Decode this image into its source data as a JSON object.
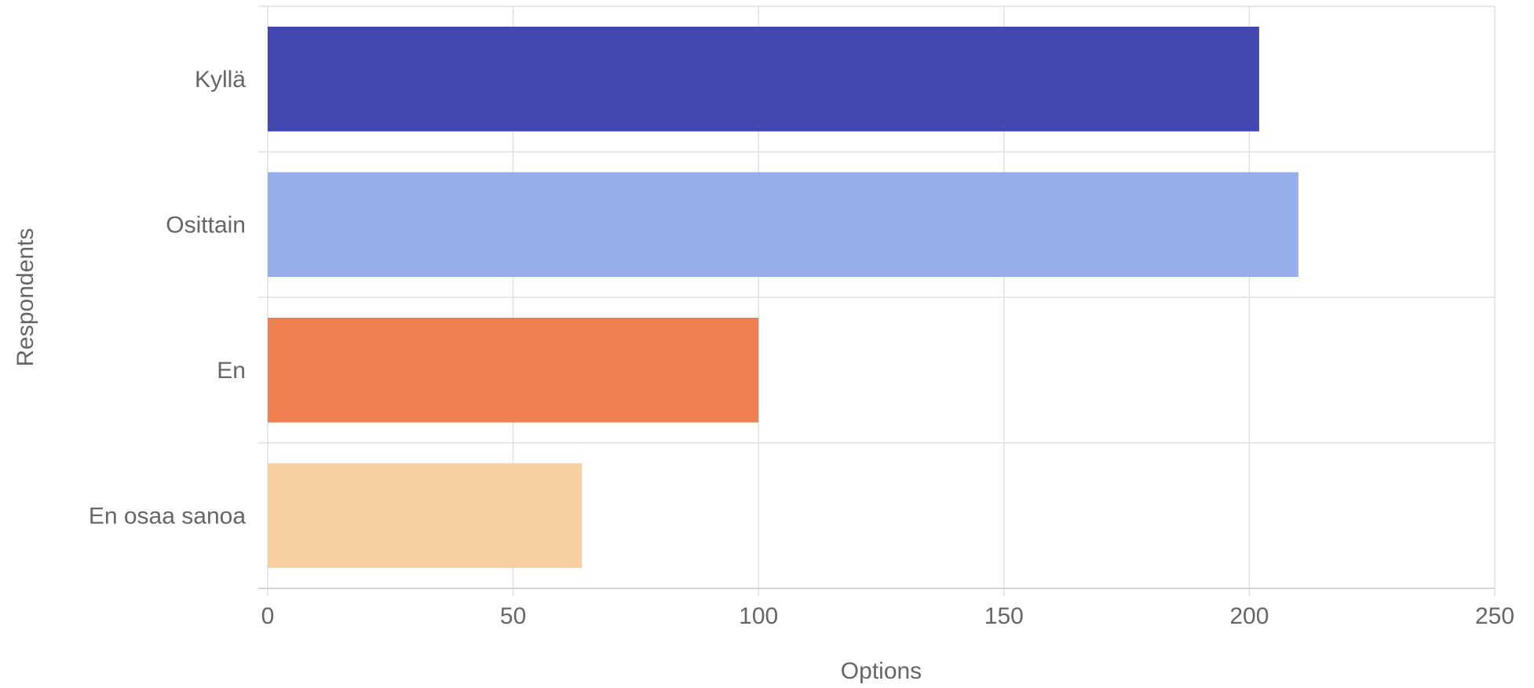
{
  "chart_data": {
    "type": "bar",
    "orientation": "horizontal",
    "categories": [
      "Kyllä",
      "Osittain",
      "En",
      "En osaa sanoa"
    ],
    "values": [
      202,
      210,
      100,
      64
    ],
    "colors": [
      "#4347b0",
      "#98aeec",
      "#ed7f51",
      "#f8cfa0"
    ],
    "xlabel": "Options",
    "ylabel": "Respondents",
    "xlim": [
      0,
      250
    ],
    "xticks": [
      0,
      50,
      100,
      150,
      200,
      250
    ],
    "grid": true,
    "legend": "none"
  }
}
